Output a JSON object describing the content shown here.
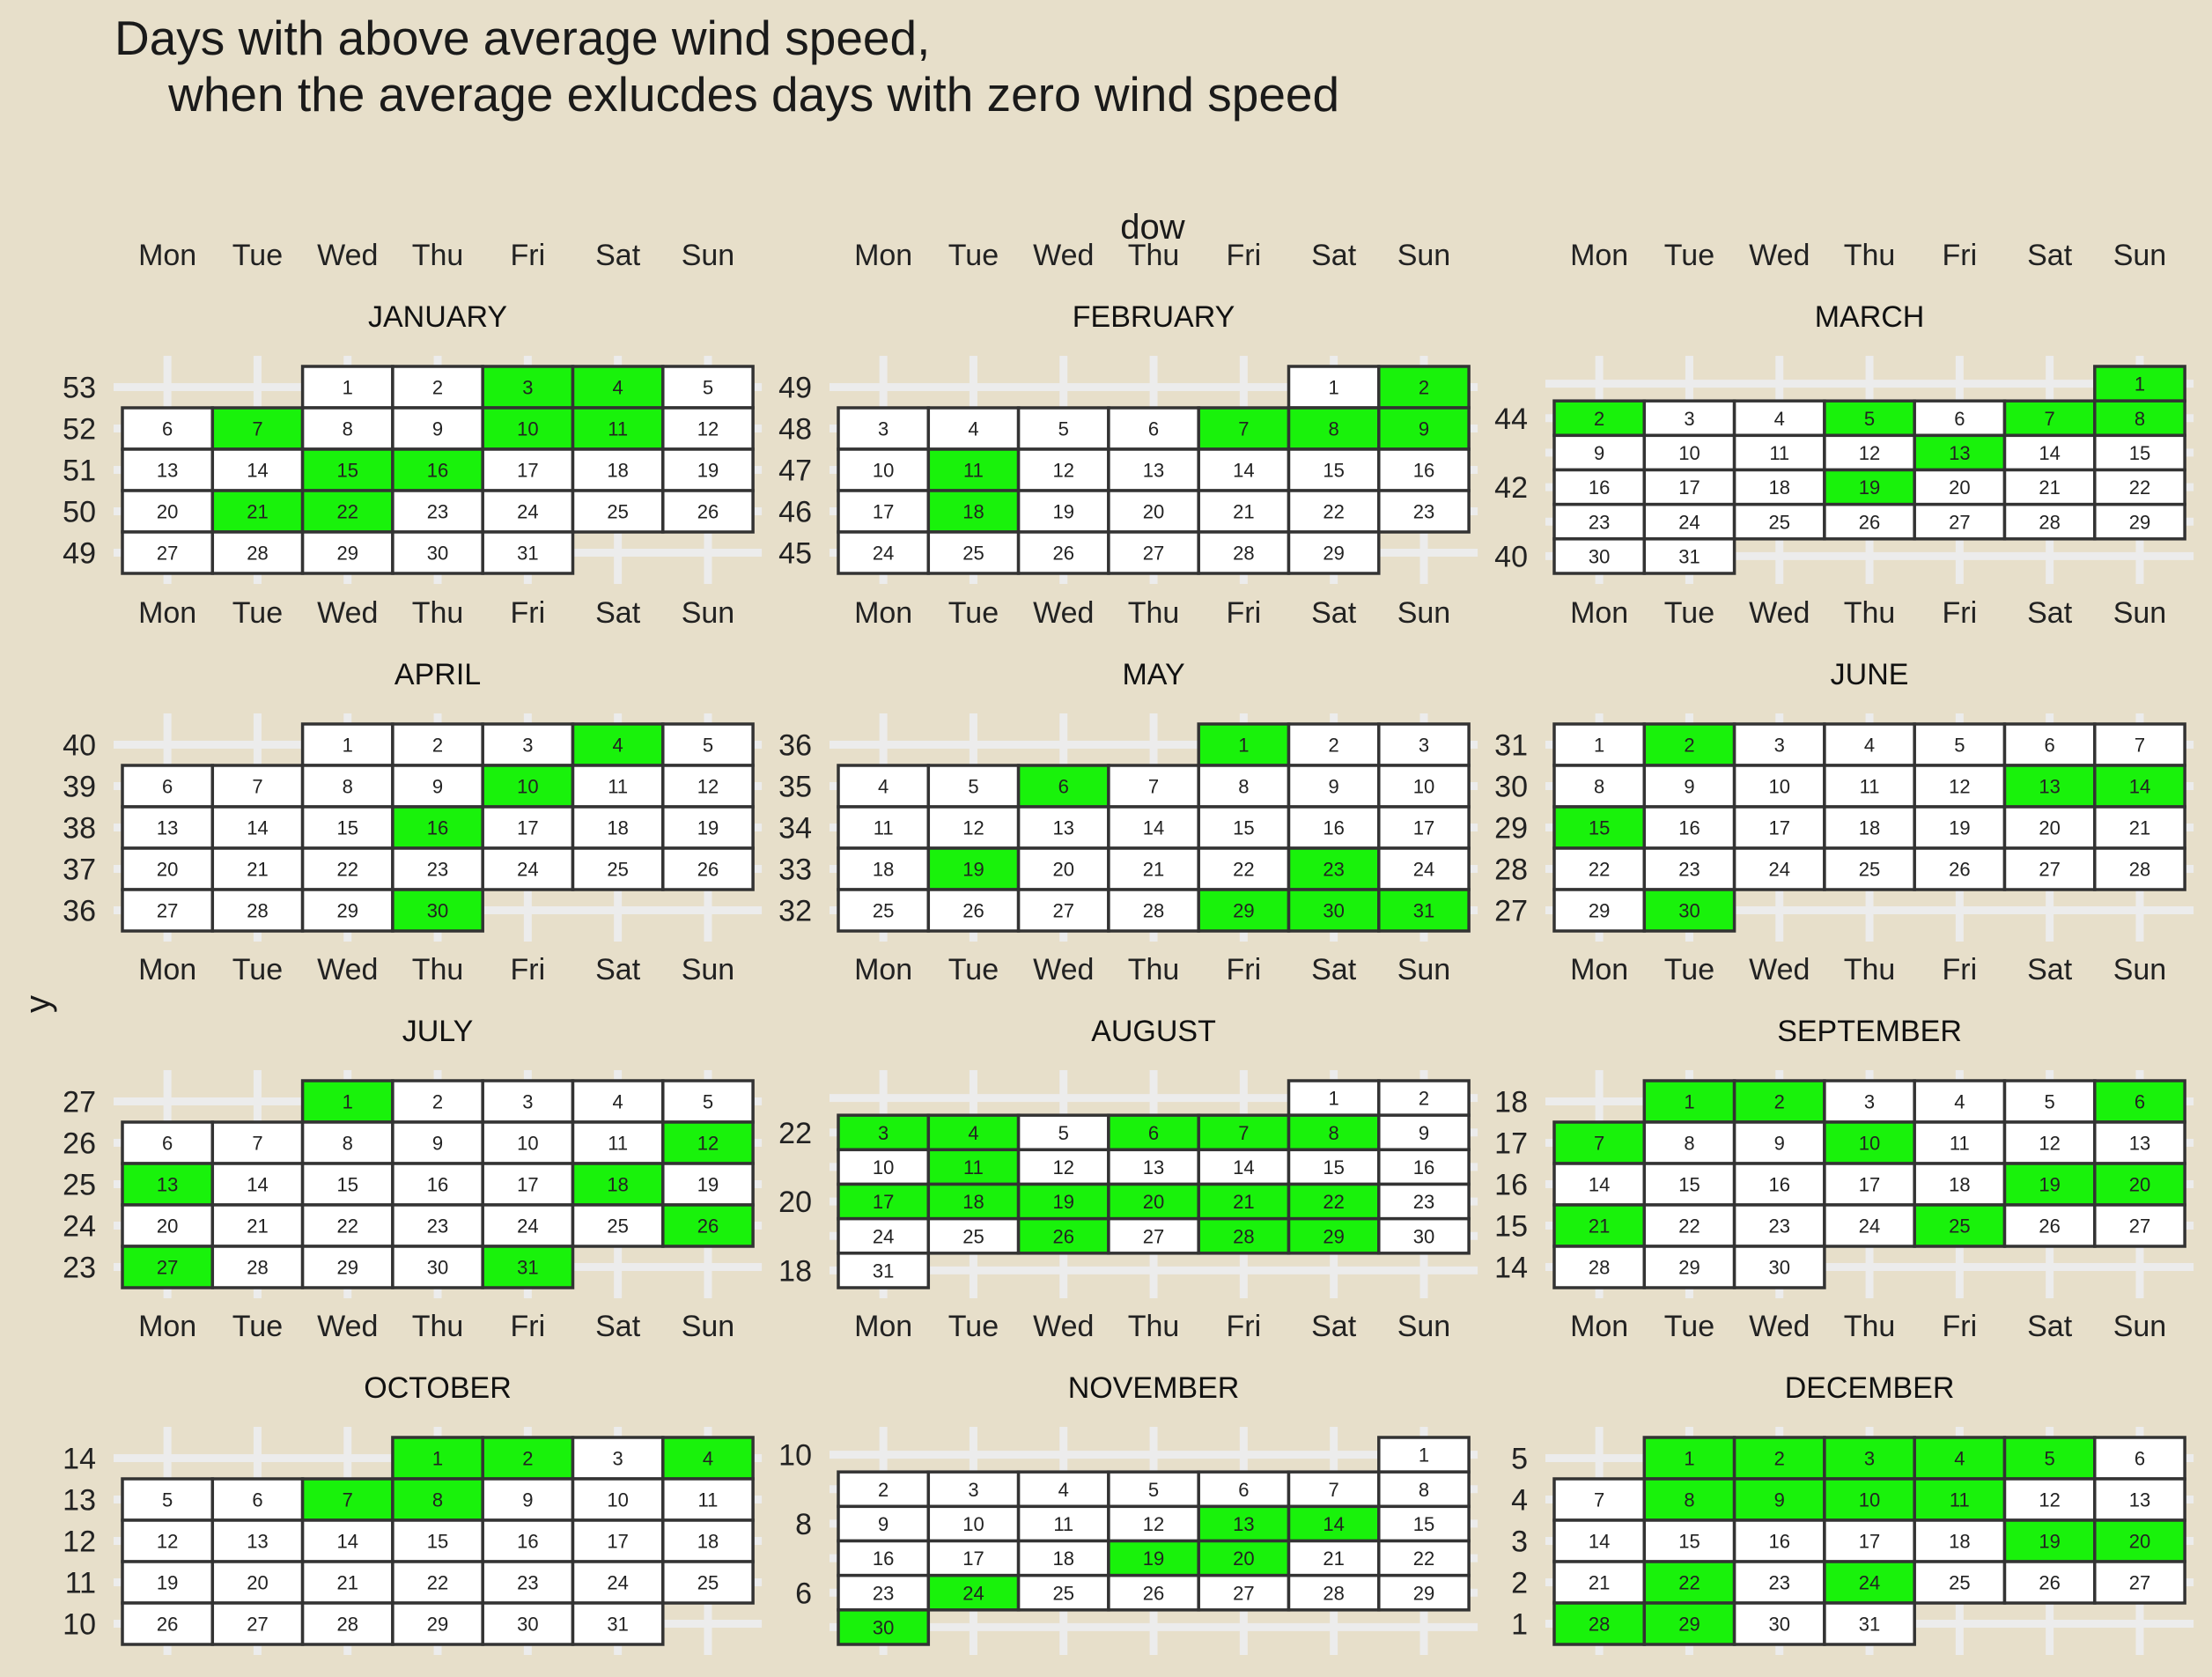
{
  "title_line1": "Days with above average wind speed,",
  "title_line2": "    when the average exlucdes days with zero wind speed",
  "chart_data": {
    "type": "heatmap",
    "xlabel": "dow",
    "ylabel": "y",
    "weekdays": [
      "Mon",
      "Tue",
      "Wed",
      "Thu",
      "Fri",
      "Sat",
      "Sun"
    ],
    "colors": {
      "background": "#e7dfca",
      "above_average": "#19f20b",
      "not_above": "#ffffff",
      "cell_border": "#333333",
      "grid": "#ececec"
    },
    "months": [
      {
        "name": "JANUARY",
        "days": 31,
        "start_dow": 2,
        "first_week": 53,
        "y_ticks": [
          53,
          52,
          51,
          50,
          49
        ],
        "above": [
          3,
          4,
          7,
          10,
          11,
          15,
          16,
          21,
          22
        ]
      },
      {
        "name": "FEBRUARY",
        "days": 29,
        "start_dow": 5,
        "first_week": 49,
        "y_ticks": [
          49,
          48,
          47,
          46,
          45
        ],
        "above": [
          2,
          7,
          8,
          9,
          11,
          18
        ]
      },
      {
        "name": "MARCH",
        "days": 31,
        "start_dow": 6,
        "first_week": 45,
        "y_ticks": [
          44,
          42,
          40
        ],
        "above": [
          1,
          2,
          5,
          7,
          8,
          13,
          19
        ]
      },
      {
        "name": "APRIL",
        "days": 30,
        "start_dow": 2,
        "first_week": 40,
        "y_ticks": [
          40,
          39,
          38,
          37,
          36
        ],
        "above": [
          4,
          10,
          16,
          30
        ]
      },
      {
        "name": "MAY",
        "days": 31,
        "start_dow": 4,
        "first_week": 36,
        "y_ticks": [
          36,
          35,
          34,
          33,
          32
        ],
        "above": [
          1,
          6,
          19,
          23,
          29,
          30,
          31
        ]
      },
      {
        "name": "JUNE",
        "days": 30,
        "start_dow": 0,
        "first_week": 31,
        "y_ticks": [
          31,
          30,
          29,
          28,
          27
        ],
        "above": [
          2,
          13,
          14,
          15,
          30
        ]
      },
      {
        "name": "JULY",
        "days": 31,
        "start_dow": 2,
        "first_week": 27,
        "y_ticks": [
          27,
          26,
          25,
          24,
          23
        ],
        "above": [
          1,
          12,
          13,
          18,
          26,
          27,
          31
        ]
      },
      {
        "name": "AUGUST",
        "days": 31,
        "start_dow": 5,
        "first_week": 23,
        "y_ticks": [
          22,
          20,
          18
        ],
        "above": [
          3,
          4,
          6,
          7,
          8,
          11,
          17,
          18,
          19,
          20,
          21,
          22,
          26,
          28,
          29
        ]
      },
      {
        "name": "SEPTEMBER",
        "days": 30,
        "start_dow": 1,
        "first_week": 18,
        "y_ticks": [
          18,
          17,
          16,
          15,
          14
        ],
        "above": [
          1,
          2,
          6,
          7,
          10,
          19,
          20,
          21,
          25
        ]
      },
      {
        "name": "OCTOBER",
        "days": 31,
        "start_dow": 3,
        "first_week": 14,
        "y_ticks": [
          14,
          13,
          12,
          11,
          10
        ],
        "above": [
          1,
          2,
          4,
          7,
          8
        ]
      },
      {
        "name": "NOVEMBER",
        "days": 30,
        "start_dow": 6,
        "first_week": 10,
        "y_ticks": [
          10,
          8,
          6
        ],
        "above": [
          13,
          14,
          19,
          20,
          24,
          30
        ]
      },
      {
        "name": "DECEMBER",
        "days": 31,
        "start_dow": 1,
        "first_week": 5,
        "y_ticks": [
          5,
          4,
          3,
          2,
          1
        ],
        "above": [
          1,
          2,
          3,
          4,
          5,
          8,
          9,
          10,
          11,
          19,
          20,
          22,
          24,
          28,
          29
        ]
      }
    ]
  }
}
